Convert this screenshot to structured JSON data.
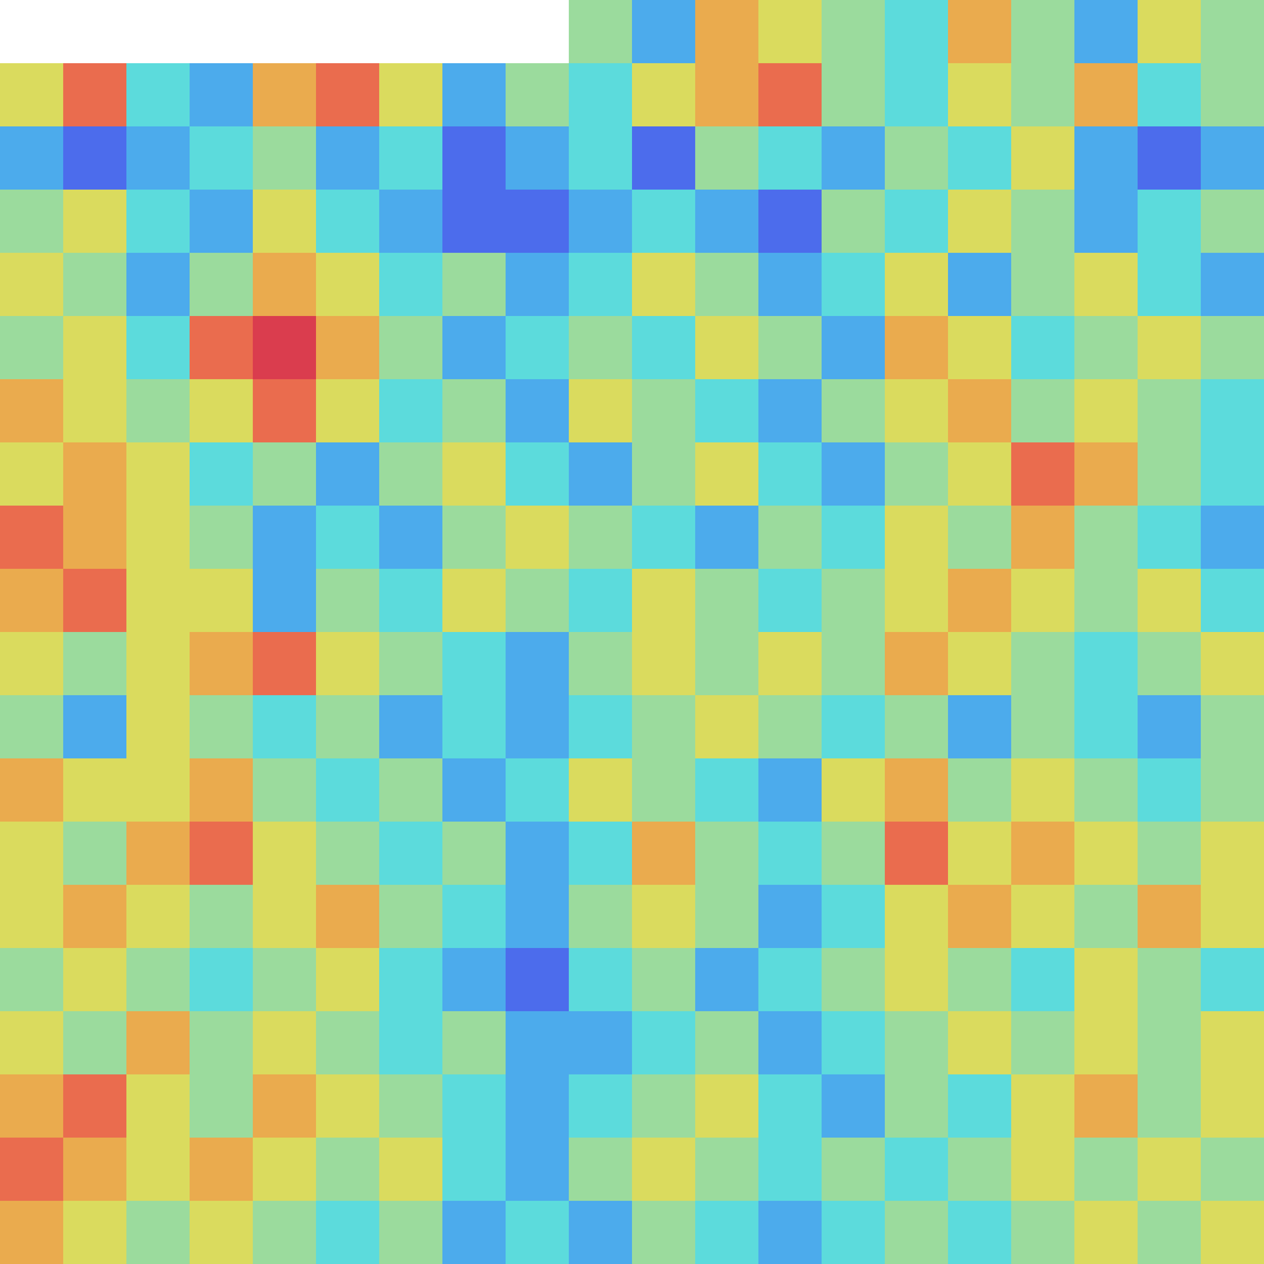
{
  "chart_data": {
    "type": "heatmap",
    "tick_labels": false,
    "zlim": [
      0,
      1
    ],
    "cells": [
      [
        null,
        null,
        null,
        null,
        null,
        null,
        null,
        null,
        null,
        0.5,
        0.3,
        0.7,
        0.6,
        0.5,
        0.4,
        0.7,
        0.5,
        0.3,
        0.6,
        0.5
      ],
      [
        0.6,
        0.8,
        0.4,
        0.3,
        0.7,
        0.8,
        0.6,
        0.3,
        0.5,
        0.4,
        0.6,
        0.7,
        0.8,
        0.5,
        0.4,
        0.6,
        0.5,
        0.7,
        0.4,
        0.5
      ],
      [
        0.3,
        0.2,
        0.3,
        0.4,
        0.5,
        0.3,
        0.4,
        0.2,
        0.3,
        0.4,
        0.2,
        0.5,
        0.4,
        0.3,
        0.5,
        0.4,
        0.6,
        0.3,
        0.2,
        0.3
      ],
      [
        0.5,
        0.6,
        0.4,
        0.3,
        0.6,
        0.4,
        0.3,
        0.2,
        0.2,
        0.3,
        0.4,
        0.3,
        0.2,
        0.5,
        0.4,
        0.6,
        0.5,
        0.3,
        0.4,
        0.5
      ],
      [
        0.6,
        0.5,
        0.3,
        0.5,
        0.7,
        0.6,
        0.4,
        0.5,
        0.3,
        0.4,
        0.6,
        0.5,
        0.3,
        0.4,
        0.6,
        0.3,
        0.5,
        0.6,
        0.4,
        0.3
      ],
      [
        0.5,
        0.6,
        0.4,
        0.8,
        0.9,
        0.7,
        0.5,
        0.3,
        0.4,
        0.5,
        0.4,
        0.6,
        0.5,
        0.3,
        0.7,
        0.6,
        0.4,
        0.5,
        0.6,
        0.5
      ],
      [
        0.7,
        0.6,
        0.5,
        0.6,
        0.8,
        0.6,
        0.4,
        0.5,
        0.3,
        0.6,
        0.5,
        0.4,
        0.3,
        0.5,
        0.6,
        0.7,
        0.5,
        0.6,
        0.5,
        0.4
      ],
      [
        0.6,
        0.7,
        0.6,
        0.4,
        0.5,
        0.3,
        0.5,
        0.6,
        0.4,
        0.3,
        0.5,
        0.6,
        0.4,
        0.3,
        0.5,
        0.6,
        0.8,
        0.7,
        0.5,
        0.4
      ],
      [
        0.8,
        0.7,
        0.6,
        0.5,
        0.3,
        0.4,
        0.3,
        0.5,
        0.6,
        0.5,
        0.4,
        0.3,
        0.5,
        0.4,
        0.6,
        0.5,
        0.7,
        0.5,
        0.4,
        0.3
      ],
      [
        0.7,
        0.8,
        0.6,
        0.6,
        0.3,
        0.5,
        0.4,
        0.6,
        0.5,
        0.4,
        0.6,
        0.5,
        0.4,
        0.5,
        0.6,
        0.7,
        0.6,
        0.5,
        0.6,
        0.4
      ],
      [
        0.6,
        0.5,
        0.6,
        0.7,
        0.8,
        0.6,
        0.5,
        0.4,
        0.3,
        0.5,
        0.6,
        0.5,
        0.6,
        0.5,
        0.7,
        0.6,
        0.5,
        0.4,
        0.5,
        0.6
      ],
      [
        0.5,
        0.3,
        0.6,
        0.5,
        0.4,
        0.5,
        0.3,
        0.4,
        0.3,
        0.4,
        0.5,
        0.6,
        0.5,
        0.4,
        0.5,
        0.3,
        0.5,
        0.4,
        0.3,
        0.5
      ],
      [
        0.7,
        0.6,
        0.6,
        0.7,
        0.5,
        0.4,
        0.5,
        0.3,
        0.4,
        0.6,
        0.5,
        0.4,
        0.3,
        0.6,
        0.7,
        0.5,
        0.6,
        0.5,
        0.4,
        0.5
      ],
      [
        0.6,
        0.5,
        0.7,
        0.8,
        0.6,
        0.5,
        0.4,
        0.5,
        0.3,
        0.4,
        0.7,
        0.5,
        0.4,
        0.5,
        0.8,
        0.6,
        0.7,
        0.6,
        0.5,
        0.6
      ],
      [
        0.6,
        0.7,
        0.6,
        0.5,
        0.6,
        0.7,
        0.5,
        0.4,
        0.3,
        0.5,
        0.6,
        0.5,
        0.3,
        0.4,
        0.6,
        0.7,
        0.6,
        0.5,
        0.7,
        0.6
      ],
      [
        0.5,
        0.6,
        0.5,
        0.4,
        0.5,
        0.6,
        0.4,
        0.3,
        0.2,
        0.4,
        0.5,
        0.3,
        0.4,
        0.5,
        0.6,
        0.5,
        0.4,
        0.6,
        0.5,
        0.4
      ],
      [
        0.6,
        0.5,
        0.7,
        0.5,
        0.6,
        0.5,
        0.4,
        0.5,
        0.3,
        0.3,
        0.4,
        0.5,
        0.3,
        0.4,
        0.5,
        0.6,
        0.5,
        0.6,
        0.5,
        0.6
      ],
      [
        0.7,
        0.8,
        0.6,
        0.5,
        0.7,
        0.6,
        0.5,
        0.4,
        0.3,
        0.4,
        0.5,
        0.6,
        0.4,
        0.3,
        0.5,
        0.4,
        0.6,
        0.7,
        0.5,
        0.6
      ],
      [
        0.8,
        0.7,
        0.6,
        0.7,
        0.6,
        0.5,
        0.6,
        0.4,
        0.3,
        0.5,
        0.6,
        0.5,
        0.4,
        0.5,
        0.4,
        0.5,
        0.6,
        0.5,
        0.6,
        0.5
      ],
      [
        0.7,
        0.6,
        0.5,
        0.6,
        0.5,
        0.4,
        0.5,
        0.3,
        0.4,
        0.3,
        0.5,
        0.4,
        0.3,
        0.4,
        0.5,
        0.4,
        0.5,
        0.6,
        0.5,
        0.6
      ]
    ]
  }
}
